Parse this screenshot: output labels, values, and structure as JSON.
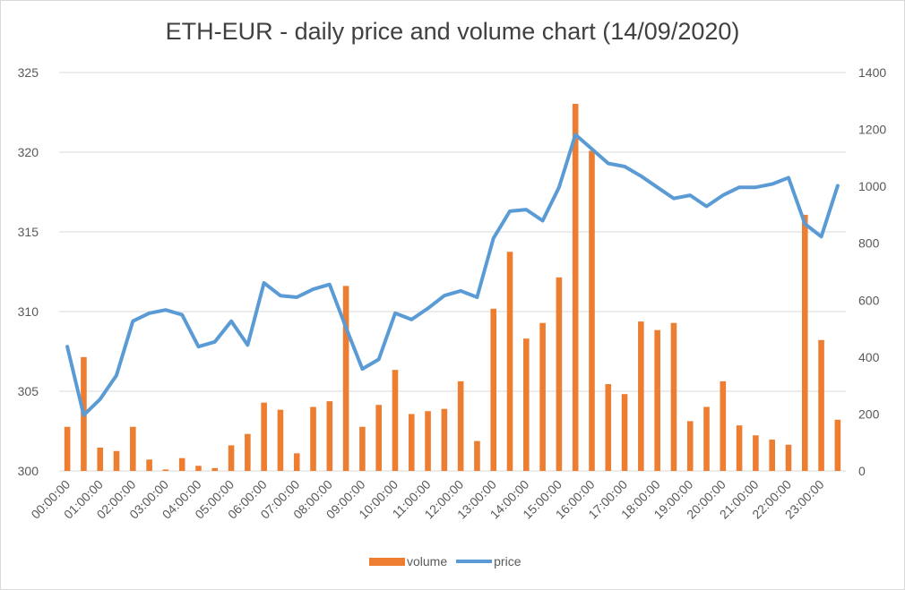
{
  "chart_data": {
    "type": "bar+line",
    "title": "ETH-EUR - daily price and volume chart (14/09/2020)",
    "x": [
      "00:00:00",
      "00:30:00",
      "01:00:00",
      "01:30:00",
      "02:00:00",
      "02:30:00",
      "03:00:00",
      "03:30:00",
      "04:00:00",
      "04:30:00",
      "05:00:00",
      "05:30:00",
      "06:00:00",
      "06:30:00",
      "07:00:00",
      "07:30:00",
      "08:00:00",
      "08:30:00",
      "09:00:00",
      "09:30:00",
      "10:00:00",
      "10:30:00",
      "11:00:00",
      "11:30:00",
      "12:00:00",
      "12:30:00",
      "13:00:00",
      "13:30:00",
      "14:00:00",
      "14:30:00",
      "15:00:00",
      "15:30:00",
      "16:00:00",
      "16:30:00",
      "17:00:00",
      "17:30:00",
      "18:00:00",
      "18:30:00",
      "19:00:00",
      "19:30:00",
      "20:00:00",
      "20:30:00",
      "21:00:00",
      "21:30:00",
      "22:00:00",
      "22:30:00",
      "23:00:00",
      "23:30:00"
    ],
    "x_tick_labels": [
      "00:00:00",
      "01:00:00",
      "02:00:00",
      "03:00:00",
      "04:00:00",
      "05:00:00",
      "06:00:00",
      "07:00:00",
      "08:00:00",
      "09:00:00",
      "10:00:00",
      "11:00:00",
      "12:00:00",
      "13:00:00",
      "14:00:00",
      "15:00:00",
      "16:00:00",
      "17:00:00",
      "18:00:00",
      "19:00:00",
      "20:00:00",
      "21:00:00",
      "22:00:00",
      "23:00:00"
    ],
    "series": [
      {
        "name": "volume",
        "type": "bar",
        "axis": "right",
        "color": "#ed7d31",
        "values": [
          155,
          400,
          82,
          70,
          155,
          40,
          5,
          45,
          18,
          10,
          90,
          130,
          240,
          215,
          62,
          225,
          245,
          650,
          155,
          232,
          355,
          200,
          210,
          218,
          315,
          105,
          570,
          770,
          465,
          520,
          680,
          1290,
          1125,
          305,
          270,
          525,
          495,
          520,
          175,
          225,
          315,
          160,
          125,
          110,
          92,
          900,
          460,
          180
        ]
      },
      {
        "name": "price",
        "type": "line",
        "axis": "left",
        "color": "#5b9bd5",
        "values": [
          307.8,
          303.5,
          304.5,
          306.0,
          309.4,
          309.9,
          310.1,
          309.8,
          307.8,
          308.1,
          309.4,
          307.9,
          311.8,
          311.0,
          310.9,
          311.4,
          311.7,
          309.0,
          306.4,
          307.0,
          309.9,
          309.5,
          310.2,
          311.0,
          311.3,
          310.9,
          314.6,
          316.3,
          316.4,
          315.7,
          317.8,
          321.1,
          320.2,
          319.3,
          319.1,
          318.5,
          317.8,
          317.1,
          317.3,
          316.6,
          317.3,
          317.8,
          317.8,
          318.0,
          318.4,
          315.5,
          314.7,
          317.9
        ]
      }
    ],
    "y_left": {
      "range": [
        300,
        325
      ],
      "ticks": [
        "300",
        "305",
        "310",
        "315",
        "320",
        "325"
      ]
    },
    "y_right": {
      "range": [
        0,
        1400
      ],
      "ticks": [
        "0",
        "200",
        "400",
        "600",
        "800",
        "1000",
        "1200",
        "1400"
      ]
    },
    "grid": true,
    "legend": {
      "position": "bottom",
      "entries": [
        "volume",
        "price"
      ]
    }
  }
}
